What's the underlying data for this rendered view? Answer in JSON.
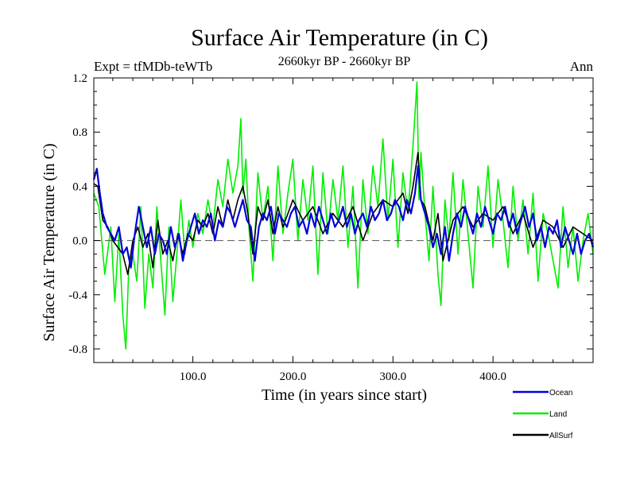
{
  "chart_data": {
    "type": "line",
    "title": "Surface Air Temperature (in C)",
    "subtitle_left": "Expt = tfMDb-teWTb",
    "subtitle_center": "2660kyr BP - 2660kyr BP",
    "subtitle_right": "Ann",
    "xlabel": "Time (in years since start)",
    "ylabel": "Surface Air Temperature (in C)",
    "xlim": [
      1,
      500
    ],
    "ylim": [
      -0.9,
      1.2
    ],
    "x_ticks": [
      100,
      200,
      300,
      400
    ],
    "x_tick_labels": [
      "100.0",
      "200.0",
      "300.0",
      "400.0"
    ],
    "y_ticks": [
      -0.8,
      -0.4,
      0.0,
      0.4,
      0.8,
      1.2
    ],
    "y_tick_labels": [
      "-0.8",
      "-0.4",
      "0.0",
      "0.4",
      "0.8",
      "1.2"
    ],
    "reference_line": 0.0,
    "legend_position": "bottom-right",
    "series": [
      {
        "name": "Land",
        "color": "#00ee00",
        "x": [
          1,
          6,
          12,
          18,
          22,
          26,
          30,
          33,
          36,
          40,
          44,
          48,
          52,
          56,
          60,
          64,
          68,
          72,
          76,
          80,
          84,
          88,
          92,
          96,
          100,
          105,
          110,
          115,
          120,
          125,
          130,
          135,
          140,
          145,
          148,
          150,
          153,
          156,
          160,
          165,
          170,
          175,
          180,
          185,
          190,
          195,
          200,
          205,
          210,
          215,
          220,
          225,
          230,
          235,
          240,
          245,
          250,
          255,
          260,
          265,
          270,
          275,
          280,
          285,
          290,
          295,
          300,
          305,
          310,
          315,
          320,
          324,
          326,
          328,
          332,
          336,
          340,
          345,
          348,
          352,
          356,
          360,
          365,
          370,
          375,
          380,
          385,
          390,
          395,
          400,
          405,
          410,
          415,
          420,
          425,
          430,
          435,
          440,
          445,
          450,
          455,
          460,
          465,
          470,
          475,
          480,
          485,
          490,
          495,
          500
        ],
        "y": [
          0.35,
          0.25,
          -0.25,
          0.1,
          -0.45,
          0.05,
          -0.55,
          -0.8,
          -0.2,
          -0.1,
          -0.3,
          0.25,
          -0.5,
          -0.1,
          -0.35,
          0.25,
          -0.15,
          -0.55,
          0.1,
          -0.45,
          -0.1,
          0.3,
          -0.1,
          0.15,
          -0.05,
          0.2,
          0.05,
          0.3,
          0.1,
          0.45,
          0.25,
          0.6,
          0.35,
          0.55,
          0.9,
          0.35,
          0.6,
          0.1,
          -0.3,
          0.5,
          0.15,
          0.4,
          -0.15,
          0.55,
          0.05,
          0.35,
          0.6,
          0.0,
          0.45,
          0.15,
          0.55,
          -0.25,
          0.5,
          0.05,
          0.45,
          0.15,
          0.55,
          -0.05,
          0.4,
          -0.35,
          0.45,
          0.05,
          0.55,
          0.25,
          0.75,
          0.15,
          0.6,
          -0.05,
          0.5,
          0.2,
          0.7,
          1.17,
          0.3,
          0.65,
          0.2,
          -0.15,
          0.4,
          -0.25,
          -0.48,
          0.3,
          0.0,
          0.5,
          -0.1,
          0.45,
          0.05,
          -0.35,
          0.4,
          0.1,
          0.55,
          -0.05,
          0.45,
          0.15,
          -0.2,
          0.4,
          0.0,
          0.3,
          -0.1,
          0.35,
          -0.3,
          0.2,
          0.05,
          -0.15,
          -0.35,
          0.25,
          -0.2,
          0.1,
          -0.3,
          0.0,
          0.2,
          -0.1
        ]
      },
      {
        "name": "AllSurf",
        "color": "#000000",
        "x": [
          1,
          5,
          10,
          15,
          20,
          25,
          30,
          35,
          40,
          45,
          50,
          55,
          60,
          65,
          70,
          75,
          80,
          85,
          90,
          95,
          100,
          105,
          110,
          115,
          120,
          125,
          130,
          135,
          140,
          145,
          150,
          155,
          160,
          165,
          170,
          175,
          180,
          185,
          190,
          195,
          200,
          210,
          220,
          230,
          240,
          250,
          260,
          270,
          280,
          290,
          300,
          310,
          315,
          320,
          325,
          328,
          332,
          340,
          345,
          350,
          360,
          370,
          380,
          390,
          400,
          410,
          420,
          430,
          440,
          450,
          460,
          470,
          480,
          490,
          500
        ],
        "y": [
          0.42,
          0.4,
          0.15,
          0.1,
          0.0,
          -0.05,
          -0.1,
          -0.25,
          0.0,
          0.1,
          -0.05,
          0.05,
          -0.2,
          0.15,
          -0.1,
          0.0,
          -0.15,
          0.05,
          -0.1,
          0.05,
          0.0,
          0.15,
          0.1,
          0.2,
          0.05,
          0.25,
          0.1,
          0.3,
          0.15,
          0.3,
          0.4,
          0.2,
          -0.1,
          0.25,
          0.15,
          0.3,
          0.05,
          0.25,
          0.1,
          0.2,
          0.3,
          0.15,
          0.25,
          0.05,
          0.2,
          0.1,
          0.25,
          0.0,
          0.2,
          0.3,
          0.25,
          0.35,
          0.2,
          0.4,
          0.65,
          0.3,
          0.25,
          0.0,
          0.2,
          -0.15,
          0.15,
          0.25,
          0.1,
          0.2,
          0.15,
          0.25,
          0.05,
          0.2,
          -0.05,
          0.15,
          0.1,
          -0.05,
          0.1,
          0.05,
          0.0
        ]
      },
      {
        "name": "Ocean",
        "color": "#0000dd",
        "x": [
          1,
          4,
          7,
          10,
          14,
          18,
          22,
          26,
          30,
          34,
          38,
          42,
          46,
          50,
          54,
          58,
          62,
          66,
          70,
          74,
          78,
          82,
          86,
          90,
          94,
          98,
          102,
          106,
          110,
          114,
          118,
          122,
          126,
          130,
          134,
          138,
          142,
          146,
          150,
          154,
          158,
          162,
          166,
          170,
          174,
          178,
          182,
          186,
          190,
          194,
          198,
          202,
          206,
          210,
          214,
          218,
          222,
          226,
          230,
          234,
          238,
          242,
          246,
          250,
          254,
          258,
          262,
          266,
          270,
          274,
          278,
          282,
          286,
          290,
          294,
          298,
          302,
          306,
          310,
          314,
          318,
          322,
          325,
          328,
          332,
          336,
          340,
          344,
          348,
          352,
          356,
          360,
          364,
          368,
          372,
          376,
          380,
          384,
          388,
          392,
          396,
          400,
          404,
          408,
          412,
          416,
          420,
          424,
          428,
          432,
          436,
          440,
          444,
          448,
          452,
          456,
          460,
          464,
          468,
          472,
          476,
          480,
          484,
          488,
          492,
          496,
          500
        ],
        "y": [
          0.45,
          0.53,
          0.35,
          0.2,
          0.1,
          0.05,
          0.0,
          0.1,
          -0.1,
          -0.05,
          -0.2,
          0.05,
          0.25,
          0.1,
          -0.05,
          0.1,
          -0.1,
          0.05,
          0.0,
          -0.1,
          0.1,
          -0.05,
          0.05,
          -0.15,
          0.0,
          0.1,
          0.2,
          0.05,
          0.15,
          0.1,
          0.2,
          0.0,
          0.15,
          0.1,
          0.25,
          0.2,
          0.1,
          0.2,
          0.3,
          0.15,
          0.1,
          -0.15,
          0.1,
          0.2,
          0.15,
          0.25,
          0.05,
          0.2,
          0.15,
          0.1,
          0.2,
          0.25,
          0.1,
          0.15,
          0.05,
          0.2,
          0.1,
          0.25,
          0.15,
          0.05,
          0.2,
          0.1,
          0.15,
          0.25,
          0.1,
          0.2,
          0.05,
          0.15,
          0.2,
          0.1,
          0.25,
          0.15,
          0.2,
          0.3,
          0.15,
          0.2,
          0.3,
          0.25,
          0.15,
          0.3,
          0.2,
          0.35,
          0.55,
          0.3,
          0.2,
          0.1,
          -0.05,
          0.05,
          -0.1,
          0.1,
          -0.15,
          0.05,
          0.2,
          0.1,
          0.25,
          0.15,
          0.05,
          0.2,
          0.1,
          0.25,
          0.15,
          0.05,
          0.2,
          0.15,
          0.25,
          0.1,
          0.2,
          0.05,
          0.15,
          0.25,
          0.1,
          0.2,
          0.0,
          0.1,
          -0.05,
          0.1,
          0.05,
          0.15,
          -0.05,
          0.1,
          0.0,
          -0.1,
          0.05,
          -0.1,
          0.0,
          0.05,
          -0.05
        ]
      }
    ],
    "legend": [
      {
        "label": "Ocean",
        "color": "#0000dd"
      },
      {
        "label": "Land",
        "color": "#00ee00"
      },
      {
        "label": "AllSurf",
        "color": "#000000"
      }
    ]
  }
}
